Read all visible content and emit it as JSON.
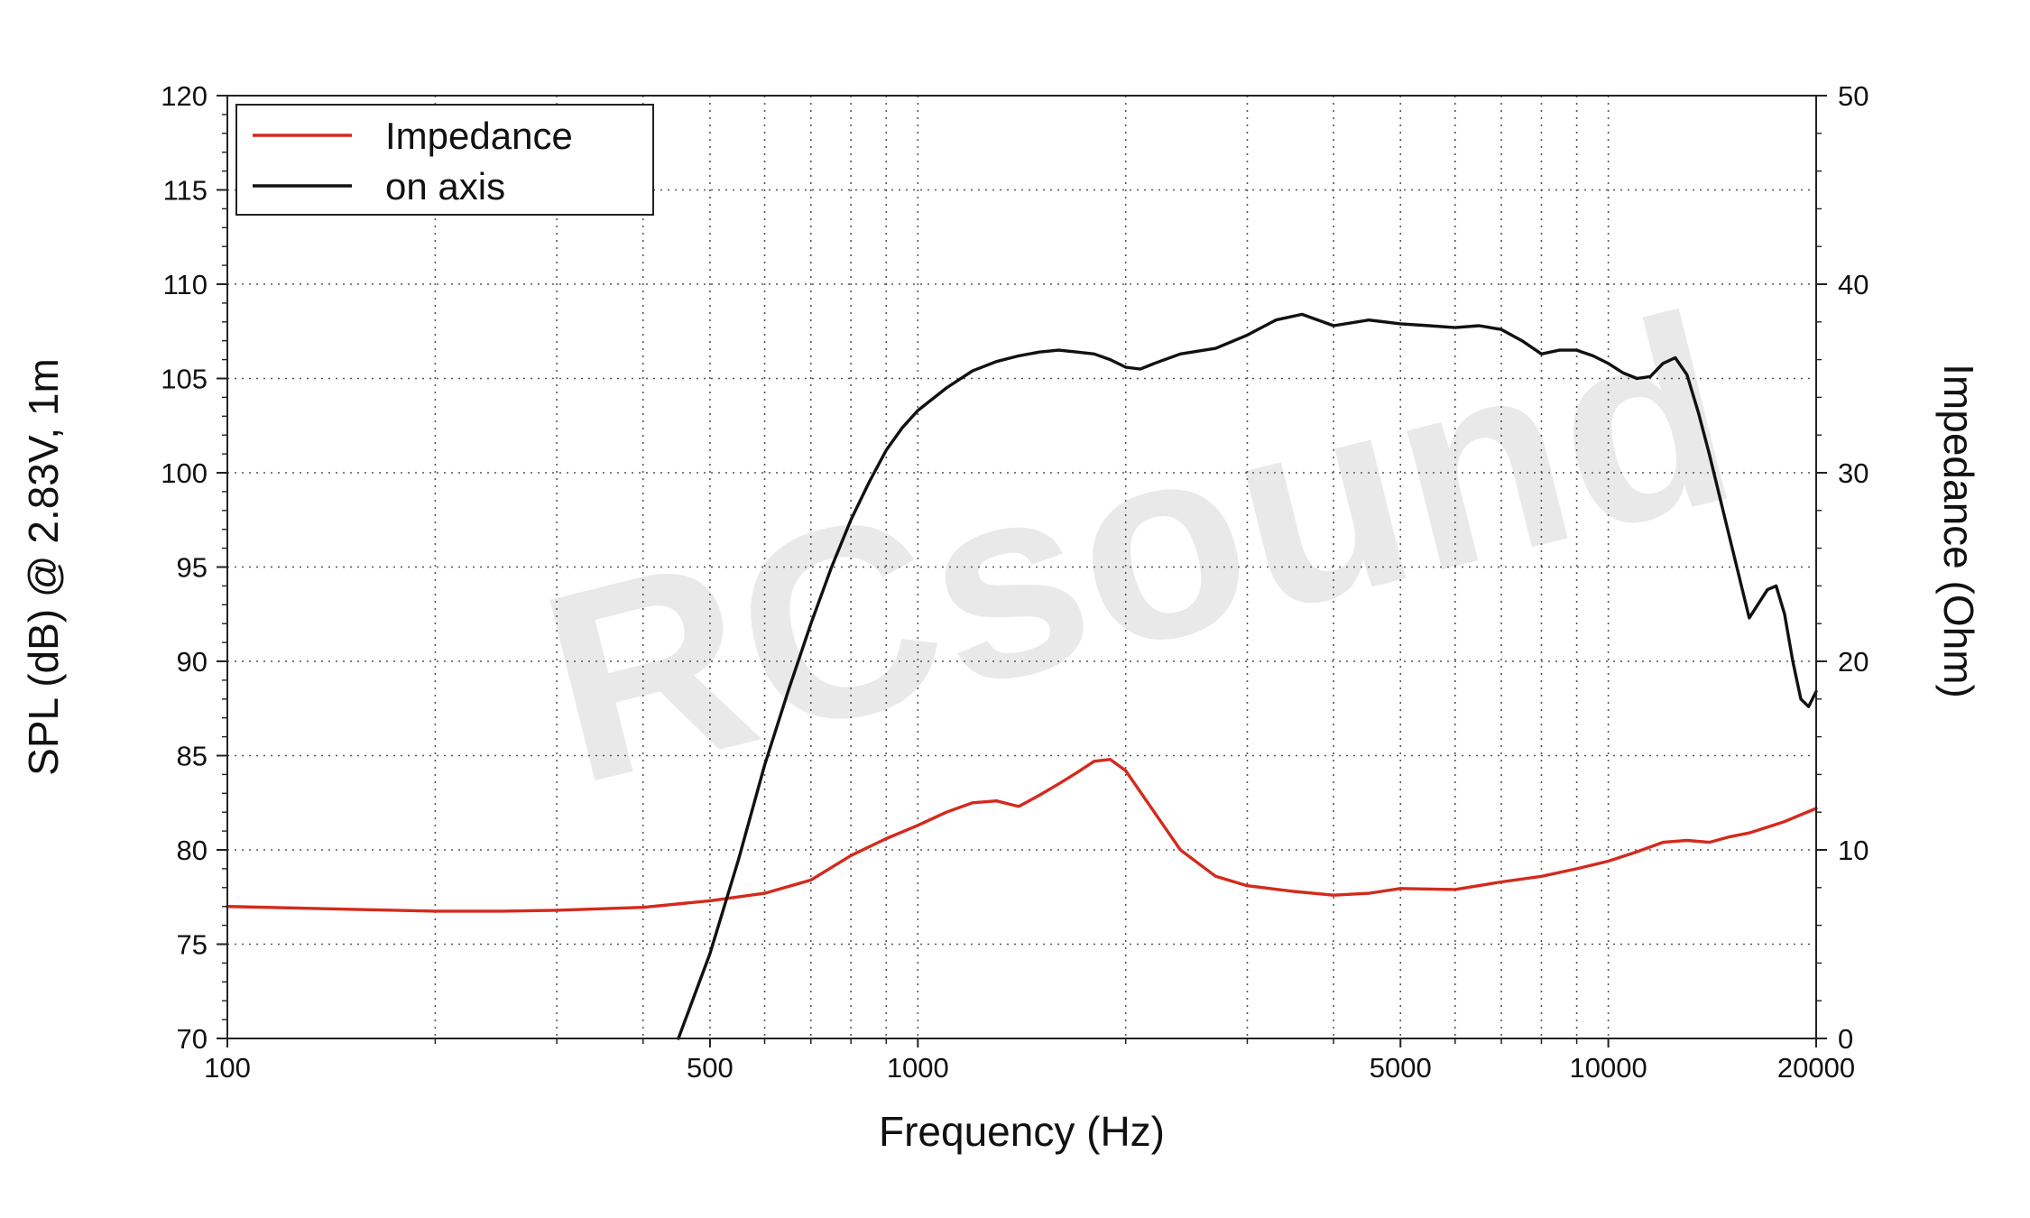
{
  "chart_data": {
    "type": "line",
    "watermark": "RCsound",
    "xlabel": "Frequency (Hz)",
    "ylabel": "SPL (dB) @ 2.83V, 1m",
    "y2label": "Impedance (Ohm)",
    "xscale": "log",
    "xlim": [
      100,
      20000
    ],
    "ylim": [
      70,
      120
    ],
    "y2lim": [
      0,
      50
    ],
    "grid": true,
    "legend_position": "top-left",
    "xticks": [
      100,
      500,
      1000,
      5000,
      10000,
      20000
    ],
    "xtick_labels": [
      "100",
      "500",
      "1000",
      "5000",
      "10000",
      "20000"
    ],
    "yticks": [
      70,
      75,
      80,
      85,
      90,
      95,
      100,
      105,
      110,
      115,
      120
    ],
    "ytick_labels": [
      "70",
      "75",
      "80",
      "85",
      "90",
      "95",
      "100",
      "105",
      "110",
      "115",
      "120"
    ],
    "y2ticks": [
      0,
      10,
      20,
      30,
      40,
      50
    ],
    "y2tick_labels": [
      "0",
      "10",
      "20",
      "30",
      "40",
      "50"
    ],
    "series": [
      {
        "name": "Impedance",
        "axis": "right",
        "color": "#d42a1c",
        "x": [
          100,
          150,
          200,
          250,
          300,
          400,
          500,
          600,
          700,
          800,
          900,
          1000,
          1100,
          1200,
          1300,
          1400,
          1500,
          1600,
          1700,
          1800,
          1900,
          2000,
          2200,
          2400,
          2700,
          3000,
          3500,
          4000,
          4500,
          5000,
          6000,
          7000,
          8000,
          9000,
          10000,
          11000,
          12000,
          13000,
          14000,
          15000,
          16000,
          18000,
          20000
        ],
        "values": [
          7.0,
          6.85,
          6.75,
          6.75,
          6.8,
          6.95,
          7.3,
          7.7,
          8.4,
          9.7,
          10.6,
          11.3,
          12.0,
          12.5,
          12.6,
          12.3,
          12.9,
          13.5,
          14.1,
          14.7,
          14.8,
          14.2,
          12.0,
          10.0,
          8.6,
          8.1,
          7.8,
          7.6,
          7.7,
          7.95,
          7.9,
          8.3,
          8.6,
          9.0,
          9.4,
          9.9,
          10.4,
          10.5,
          10.4,
          10.7,
          10.9,
          11.5,
          12.2
        ]
      },
      {
        "name": "on axis",
        "axis": "left",
        "color": "#111111",
        "x": [
          450,
          500,
          550,
          600,
          650,
          700,
          750,
          800,
          850,
          900,
          950,
          1000,
          1100,
          1200,
          1300,
          1400,
          1500,
          1600,
          1700,
          1800,
          1900,
          2000,
          2100,
          2200,
          2400,
          2700,
          3000,
          3300,
          3600,
          4000,
          4500,
          5000,
          5500,
          6000,
          6500,
          7000,
          7500,
          8000,
          8500,
          9000,
          9500,
          10000,
          10500,
          11000,
          11500,
          12000,
          12500,
          13000,
          13500,
          14000,
          15000,
          16000,
          17000,
          17500,
          18000,
          18500,
          19000,
          19500,
          20000
        ],
        "values": [
          70.0,
          74.5,
          79.5,
          84.5,
          88.5,
          92.0,
          95.0,
          97.5,
          99.5,
          101.2,
          102.4,
          103.3,
          104.5,
          105.4,
          105.9,
          106.2,
          106.4,
          106.5,
          106.4,
          106.3,
          106.0,
          105.6,
          105.5,
          105.8,
          106.3,
          106.6,
          107.3,
          108.1,
          108.4,
          107.8,
          108.1,
          107.9,
          107.8,
          107.7,
          107.8,
          107.6,
          107.0,
          106.3,
          106.5,
          106.5,
          106.2,
          105.8,
          105.3,
          105.0,
          105.1,
          105.8,
          106.1,
          105.2,
          103.2,
          101.0,
          96.5,
          92.3,
          93.8,
          94.0,
          92.5,
          90.0,
          88.0,
          87.6,
          88.4
        ]
      }
    ]
  }
}
